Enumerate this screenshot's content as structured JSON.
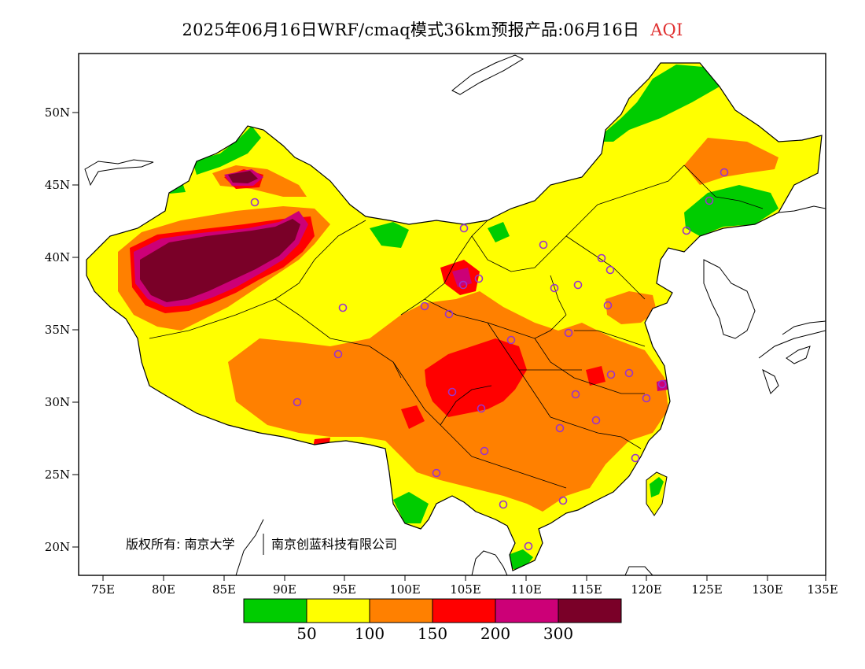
{
  "title": {
    "main": "2025年06月16日WRF/cmaq模式36km预报产品:06月16日",
    "product": "AQI",
    "product_color": "#e03030"
  },
  "axes": {
    "lat_ticks": [
      "50N",
      "45N",
      "40N",
      "35N",
      "30N",
      "25N",
      "20N"
    ],
    "lon_ticks": [
      "75E",
      "80E",
      "85E",
      "90E",
      "95E",
      "100E",
      "105E",
      "110E",
      "115E",
      "120E",
      "125E",
      "130E",
      "135E"
    ]
  },
  "copyright": {
    "part1": "版权所有: 南京大学",
    "part2": "南京创蓝科技有限公司"
  },
  "legend": {
    "colors": [
      "#00cc00",
      "#ffff00",
      "#ff8000",
      "#ff0000",
      "#cc0077",
      "#7a0028"
    ],
    "labels": [
      "50",
      "100",
      "150",
      "200",
      "300"
    ]
  },
  "stations": {
    "marker_color": "#9933cc",
    "count": 35
  }
}
